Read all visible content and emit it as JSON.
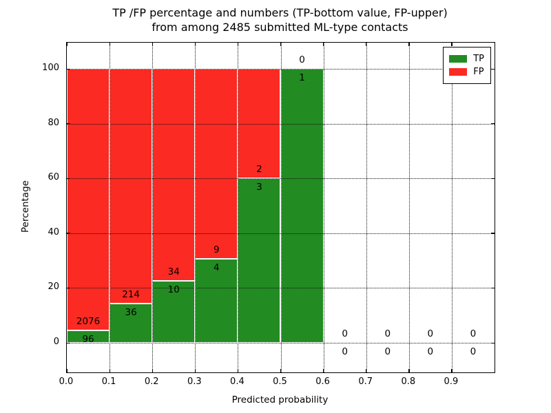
{
  "figure": {
    "title_line1": "TP /FP percentage and numbers (TP-bottom value, FP-upper)",
    "title_line2": "from among 2485 submitted ML-type contacts"
  },
  "chart_data": {
    "type": "bar",
    "stacked": true,
    "normalized_to_percent": true,
    "title": "TP /FP percentage and numbers (TP-bottom value, FP-upper)\nfrom among 2485 submitted ML-type contacts",
    "xlabel": "Predicted probability",
    "ylabel": "Percentage",
    "total_submitted_contacts": 2485,
    "bin_start": [
      0.0,
      0.1,
      0.2,
      0.3,
      0.4,
      0.5,
      0.6,
      0.7,
      0.8,
      0.9
    ],
    "bin_width": 0.1,
    "series": [
      {
        "name": "TP",
        "color": "#228b22",
        "counts": [
          96,
          36,
          10,
          4,
          3,
          1,
          0,
          0,
          0,
          0
        ]
      },
      {
        "name": "FP",
        "color": "#fb2a22",
        "counts": [
          2076,
          214,
          34,
          9,
          2,
          0,
          0,
          0,
          0,
          0
        ]
      }
    ],
    "tp_percent_by_bin": [
      4.4,
      14.4,
      22.7,
      30.8,
      60.0,
      100.0,
      0,
      0,
      0,
      0
    ],
    "bar_total_percent": 100,
    "xtick_labels": [
      "0.0",
      "0.1",
      "0.2",
      "0.3",
      "0.4",
      "0.5",
      "0.6",
      "0.7",
      "0.8",
      "0.9"
    ],
    "ytick_values": [
      0,
      20,
      40,
      60,
      80,
      100
    ],
    "xlim": [
      0.0,
      1.0
    ],
    "ylim": [
      -10.8,
      109.3
    ],
    "grid": "dotted",
    "legend": {
      "position": "upper right",
      "entries": [
        {
          "label": "TP",
          "color": "#228b22"
        },
        {
          "label": "FP",
          "color": "#fb2a22"
        }
      ]
    },
    "annotation_rule": "FP count printed above top of TP segment, TP count printed below it"
  }
}
